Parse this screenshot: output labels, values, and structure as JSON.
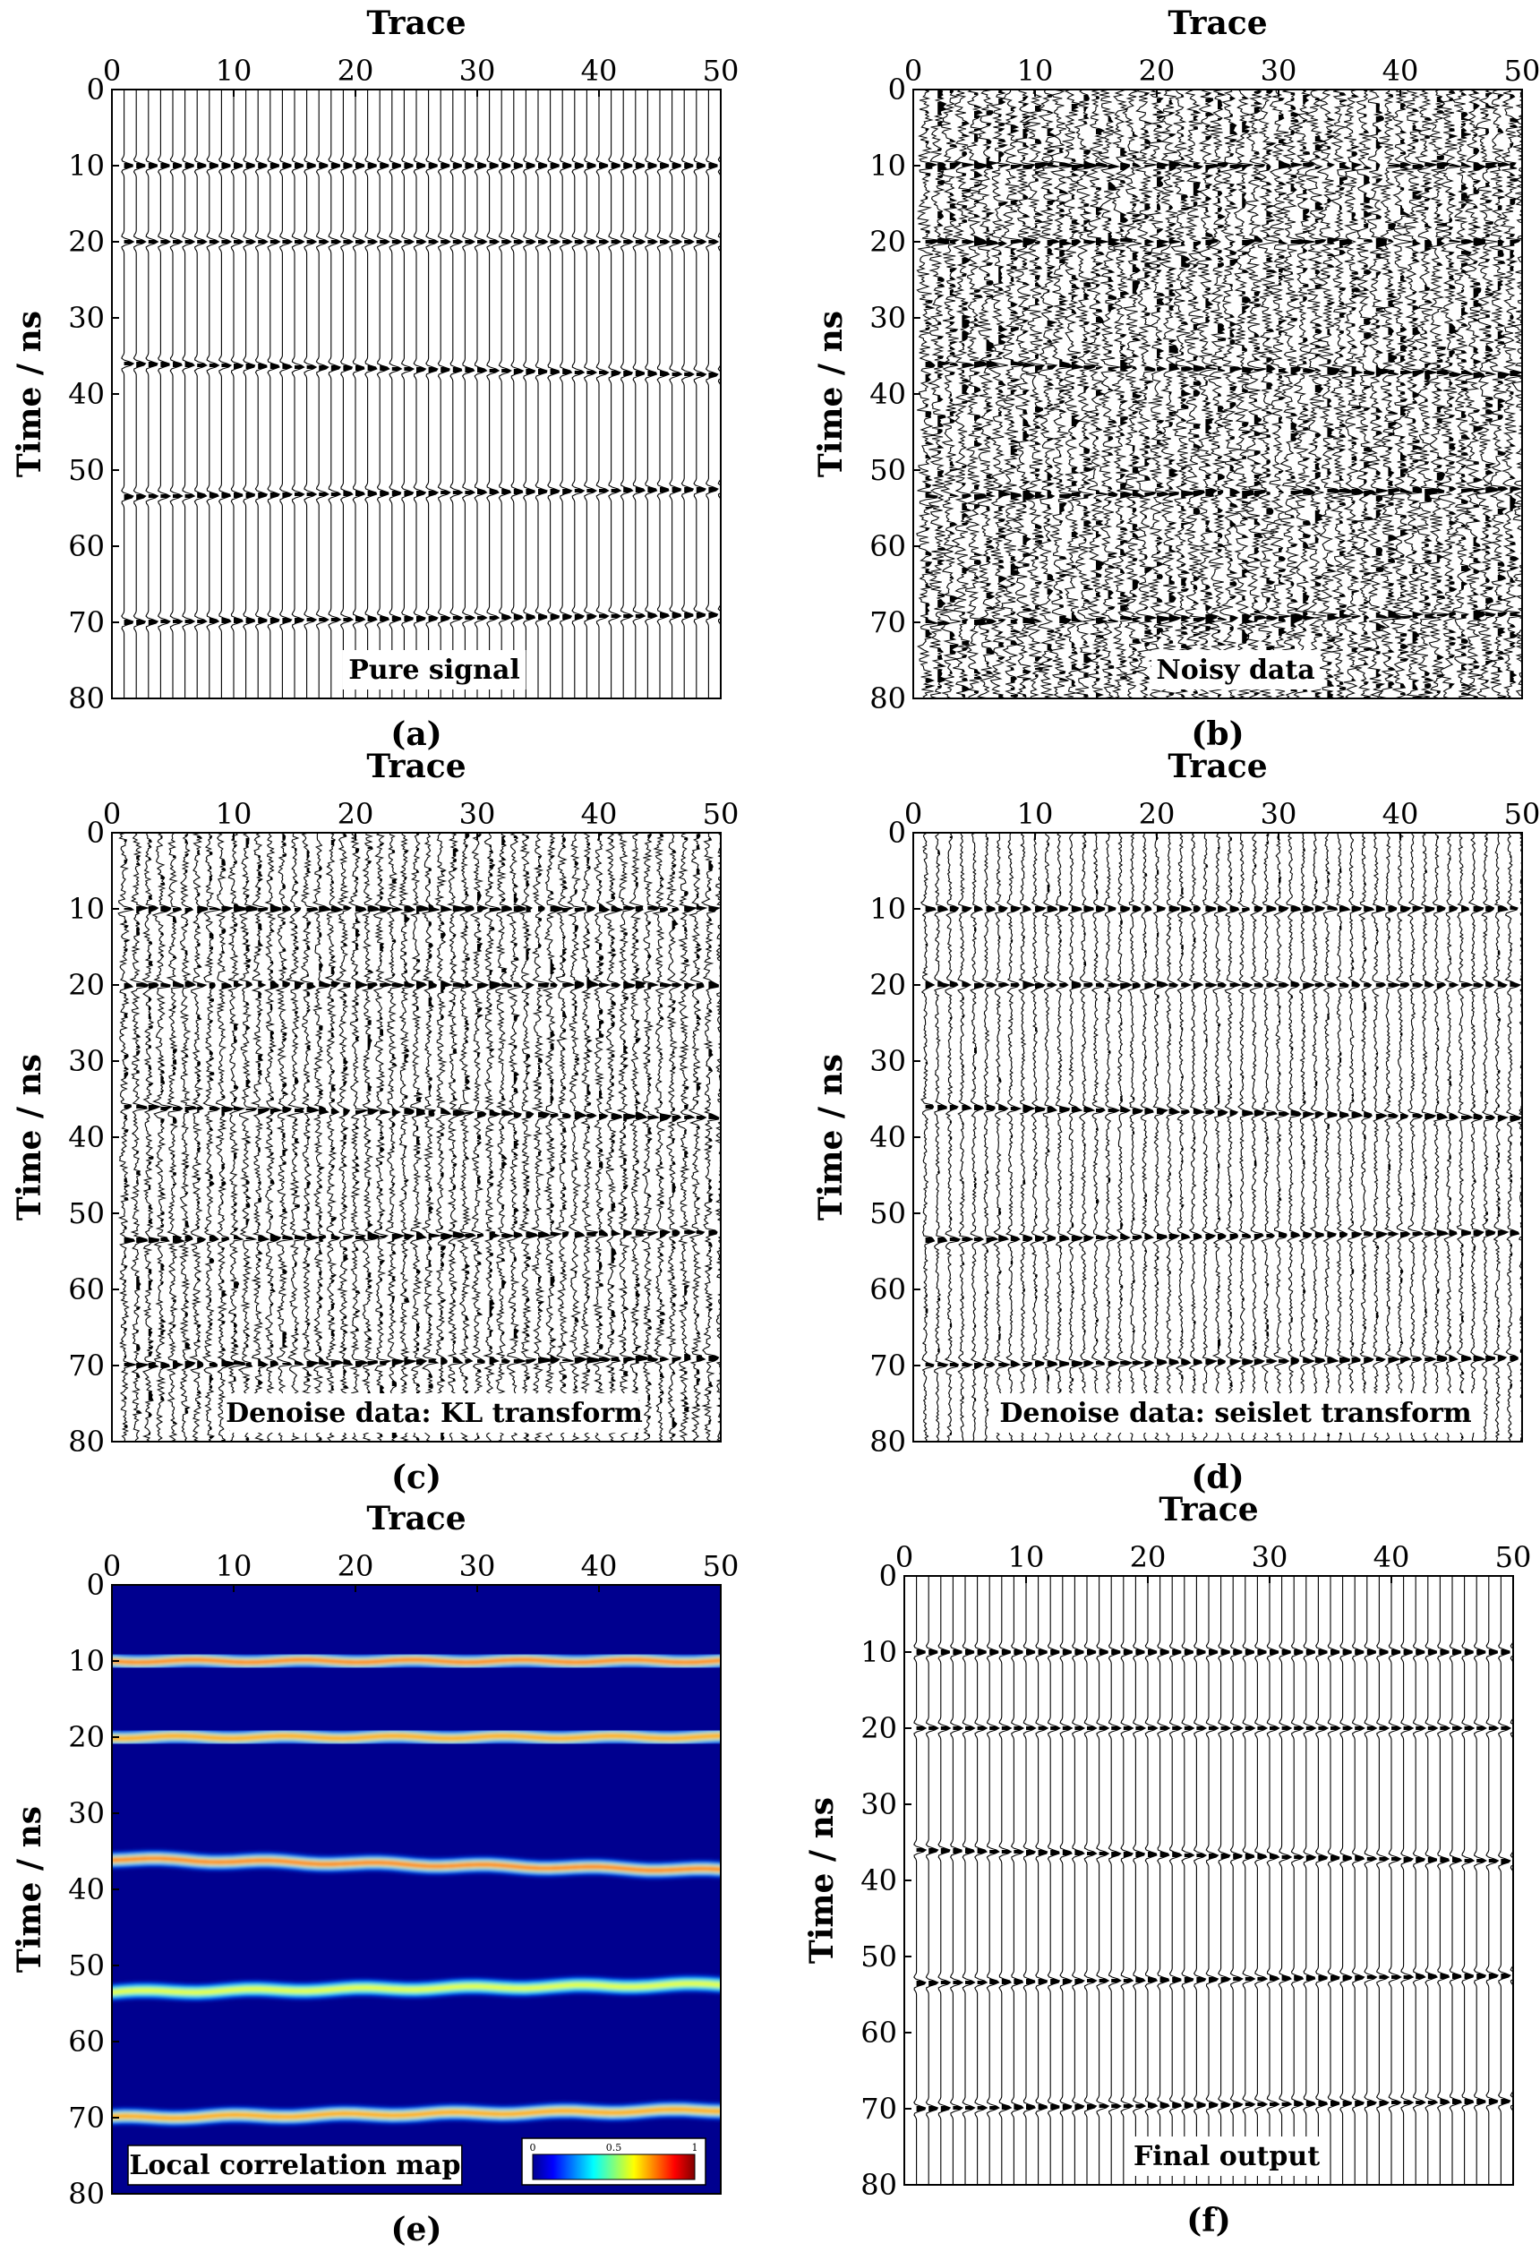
{
  "chart_data": [
    {
      "type": "wiggle",
      "panel": "(a)",
      "title": "Trace",
      "xlabel": "",
      "ylabel": "Time / ns",
      "annotation": "Pure signal",
      "xlim": [
        0,
        50
      ],
      "ylim": [
        0,
        80
      ],
      "xticks": [
        "0",
        "10",
        "20",
        "30",
        "40",
        "50"
      ],
      "yticks": [
        "0",
        "10",
        "20",
        "30",
        "40",
        "50",
        "60",
        "70",
        "80"
      ],
      "traces": 50,
      "events_ns": [
        [
          10,
          10
        ],
        [
          20,
          20
        ],
        [
          36,
          37.5
        ],
        [
          53.5,
          52.5
        ],
        [
          70,
          69
        ]
      ],
      "noise": "none"
    },
    {
      "type": "wiggle",
      "panel": "(b)",
      "title": "Trace",
      "xlabel": "",
      "ylabel": "Time / ns",
      "annotation": "Noisy data",
      "xlim": [
        0,
        50
      ],
      "ylim": [
        0,
        80
      ],
      "xticks": [
        "0",
        "10",
        "20",
        "30",
        "40",
        "50"
      ],
      "yticks": [
        "0",
        "10",
        "20",
        "30",
        "40",
        "50",
        "60",
        "70",
        "80"
      ],
      "traces": 50,
      "events_ns": [
        [
          10,
          10
        ],
        [
          20,
          20
        ],
        [
          36,
          37.5
        ],
        [
          53.5,
          52.5
        ],
        [
          70,
          69
        ]
      ],
      "noise": "strong"
    },
    {
      "type": "wiggle",
      "panel": "(c)",
      "title": "Trace",
      "xlabel": "",
      "ylabel": "Time / ns",
      "annotation": "Denoise data: KL transform",
      "xlim": [
        0,
        50
      ],
      "ylim": [
        0,
        80
      ],
      "xticks": [
        "0",
        "10",
        "20",
        "30",
        "40",
        "50"
      ],
      "yticks": [
        "0",
        "10",
        "20",
        "30",
        "40",
        "50",
        "60",
        "70",
        "80"
      ],
      "traces": 50,
      "events_ns": [
        [
          10,
          10
        ],
        [
          20,
          20
        ],
        [
          36,
          37.5
        ],
        [
          53.5,
          52.5
        ],
        [
          70,
          69
        ]
      ],
      "noise": "medium"
    },
    {
      "type": "wiggle",
      "panel": "(d)",
      "title": "Trace",
      "xlabel": "",
      "ylabel": "Time / ns",
      "annotation": "Denoise data: seislet transform",
      "xlim": [
        0,
        50
      ],
      "ylim": [
        0,
        80
      ],
      "xticks": [
        "0",
        "10",
        "20",
        "30",
        "40",
        "50"
      ],
      "yticks": [
        "0",
        "10",
        "20",
        "30",
        "40",
        "50",
        "60",
        "70",
        "80"
      ],
      "traces": 50,
      "events_ns": [
        [
          10,
          10
        ],
        [
          20,
          20
        ],
        [
          36,
          37.5
        ],
        [
          53.5,
          52.5
        ],
        [
          70,
          69
        ]
      ],
      "noise": "light"
    },
    {
      "type": "heatmap",
      "panel": "(e)",
      "title": "Trace",
      "xlabel": "",
      "ylabel": "Time / ns",
      "annotation": "Local correlation map",
      "xlim": [
        0,
        50
      ],
      "ylim": [
        0,
        80
      ],
      "xticks": [
        "0",
        "10",
        "20",
        "30",
        "40",
        "50"
      ],
      "yticks": [
        "0",
        "10",
        "20",
        "30",
        "40",
        "50",
        "60",
        "70",
        "80"
      ],
      "colorbar": {
        "ticks": [
          "0",
          "0.5",
          "1"
        ],
        "range": [
          0,
          1
        ],
        "colormap": "jet"
      },
      "events_ns": [
        [
          10,
          10
        ],
        [
          20,
          20
        ],
        [
          36,
          37.5
        ],
        [
          53.5,
          52.5
        ],
        [
          70,
          69
        ]
      ],
      "event_strength": [
        0.95,
        0.75,
        0.9,
        0.6,
        0.8
      ],
      "background_value": 0.02
    },
    {
      "type": "wiggle",
      "panel": "(f)",
      "title": "Trace",
      "xlabel": "",
      "ylabel": "Time / ns",
      "annotation": "Final output",
      "xlim": [
        0,
        50
      ],
      "ylim": [
        0,
        80
      ],
      "xticks": [
        "0",
        "10",
        "20",
        "30",
        "40",
        "50"
      ],
      "yticks": [
        "0",
        "10",
        "20",
        "30",
        "40",
        "50",
        "60",
        "70",
        "80"
      ],
      "traces": 50,
      "events_ns": [
        [
          10,
          10
        ],
        [
          20,
          20
        ],
        [
          36,
          37.5
        ],
        [
          53.5,
          52.5
        ],
        [
          70,
          69
        ]
      ],
      "noise": "none"
    }
  ]
}
